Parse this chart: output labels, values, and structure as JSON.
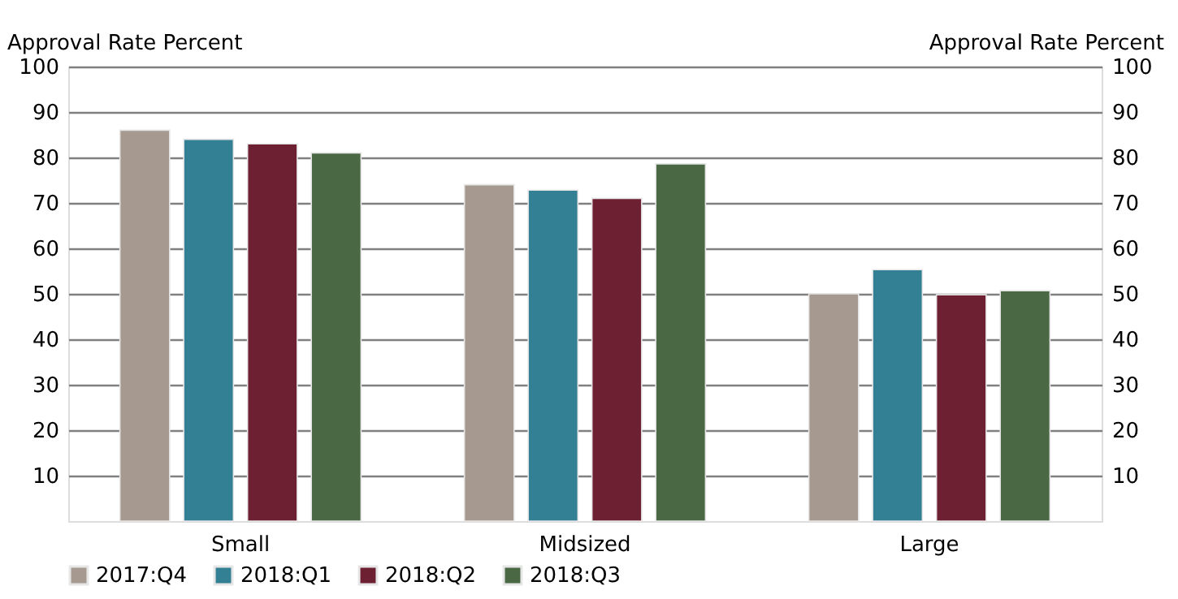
{
  "chart_data": {
    "type": "bar",
    "categories": [
      "Small",
      "Midsized",
      "Large"
    ],
    "series": [
      {
        "name": "2017:Q4",
        "color": "#a69a90",
        "values": [
          86,
          74,
          50
        ]
      },
      {
        "name": "2018:Q1",
        "color": "#337f94",
        "values": [
          84,
          72.8,
          55.3
        ]
      },
      {
        "name": "2018:Q2",
        "color": "#6e2033",
        "values": [
          83,
          71,
          49.8
        ]
      },
      {
        "name": "2018:Q3",
        "color": "#4b6844",
        "values": [
          81,
          78.6,
          50.7
        ]
      }
    ],
    "ylabel": "Approval Rate Percent",
    "y2label": "Approval Rate Percent",
    "ylim": [
      0,
      100
    ],
    "yticks": [
      10,
      20,
      30,
      40,
      50,
      60,
      70,
      80,
      90,
      100
    ],
    "y2lim": [
      0,
      100
    ],
    "y2ticks": [
      10,
      20,
      30,
      40,
      50,
      60,
      70,
      80,
      90,
      100
    ],
    "grid": "y",
    "legend": "bottom"
  }
}
